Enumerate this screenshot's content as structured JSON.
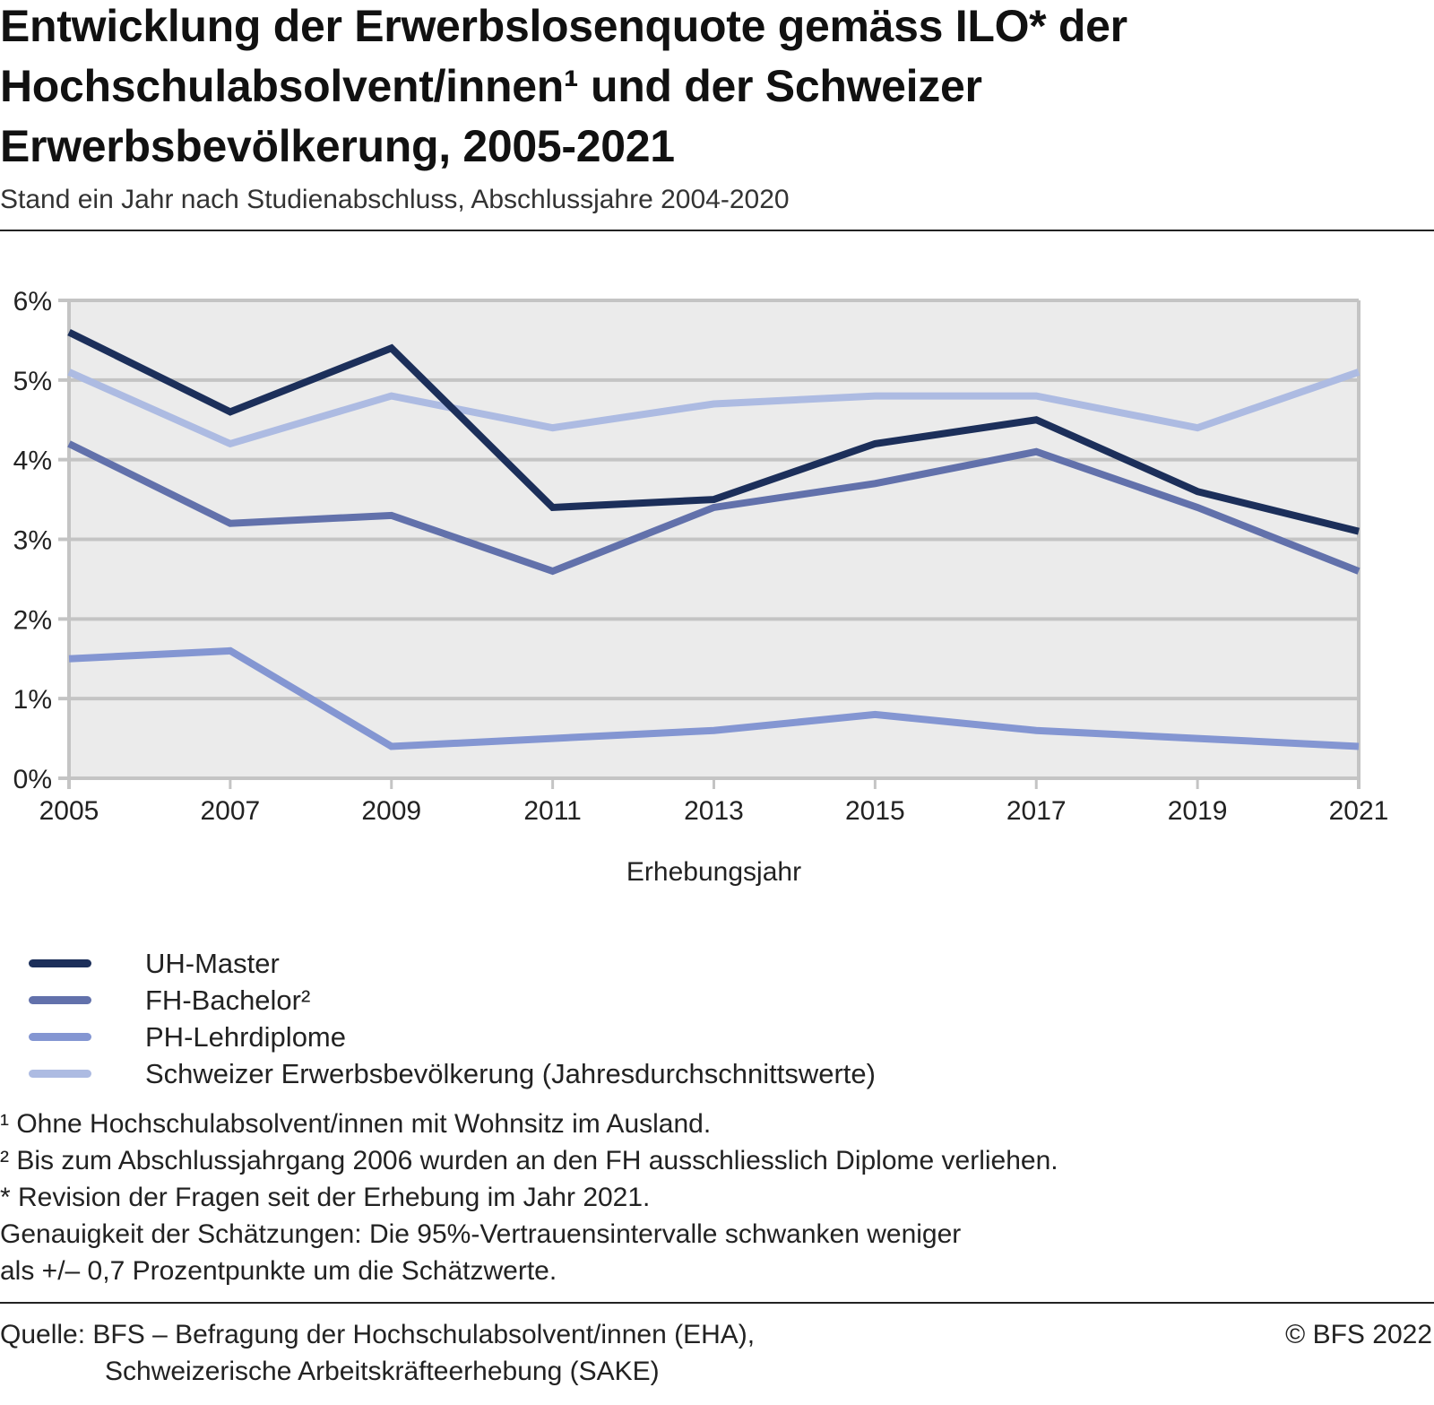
{
  "header": {
    "title": "Entwicklung der Erwerbslosenquote gemäss ILO* der Hochschulabsolvent/innen¹ und der Schweizer Erwerbsbevölkerung, 2005-2021",
    "subtitle": "Stand ein Jahr nach Studienabschluss, Abschlussjahre 2004-2020"
  },
  "chart_data": {
    "type": "line",
    "title": "Entwicklung der Erwerbslosenquote gemäss ILO* der Hochschulabsolvent/innen¹ und der Schweizer Erwerbsbevölkerung, 2005-2021",
    "subtitle": "Stand ein Jahr nach Studienabschluss, Abschlussjahre 2004-2020",
    "xlabel": "Erhebungsjahr",
    "ylabel": "",
    "x": [
      "2005",
      "2007",
      "2009",
      "2011",
      "2013",
      "2015",
      "2017",
      "2019",
      "2021"
    ],
    "ylim": [
      0,
      6
    ],
    "yticks": [
      0,
      1,
      2,
      3,
      4,
      5,
      6
    ],
    "ytick_labels": [
      "0%",
      "1%",
      "2%",
      "3%",
      "4%",
      "5%",
      "6%"
    ],
    "grid": true,
    "legend_position": "bottom-left",
    "series": [
      {
        "name": "UH-Master",
        "color": "#1c2f5a",
        "values": [
          5.6,
          4.6,
          5.4,
          3.4,
          3.5,
          4.2,
          4.5,
          3.6,
          3.1
        ]
      },
      {
        "name": "FH-Bachelor²",
        "color": "#6271ab",
        "values": [
          4.2,
          3.2,
          3.3,
          2.6,
          3.4,
          3.7,
          4.1,
          3.4,
          2.6
        ]
      },
      {
        "name": "PH-Lehrdiplome",
        "color": "#8496d2",
        "values": [
          1.5,
          1.6,
          0.4,
          0.5,
          0.6,
          0.8,
          0.6,
          0.5,
          0.4
        ]
      },
      {
        "name": "Schweizer Erwerbsbevölkerung (Jahresdurchschnittswerte)",
        "color": "#adbbe2",
        "values": [
          5.1,
          4.2,
          4.8,
          4.4,
          4.7,
          4.8,
          4.8,
          4.4,
          5.1
        ]
      }
    ]
  },
  "colors": {
    "plot_background": "#ebebeb",
    "gridline": "#c4c4c4"
  },
  "notes": [
    "¹ Ohne Hochschulabsolvent/innen mit Wohnsitz im Ausland.",
    "² Bis zum Abschlussjahrgang 2006 wurden an den FH ausschliesslich Diplome verliehen.",
    "* Revision der Fragen seit der Erhebung im Jahr 2021.",
    "Genauigkeit der Schätzungen: Die 95%-Vertrauensintervalle schwanken weniger",
    "als +/– 0,7 Prozentpunkte um die Schätzwerte."
  ],
  "source": {
    "line1": "Quelle: BFS – Befragung der Hochschulabsolvent/innen (EHA),",
    "line2": "Schweizerische Arbeitskräfteerhebung (SAKE)",
    "copyright": "© BFS 2022"
  }
}
